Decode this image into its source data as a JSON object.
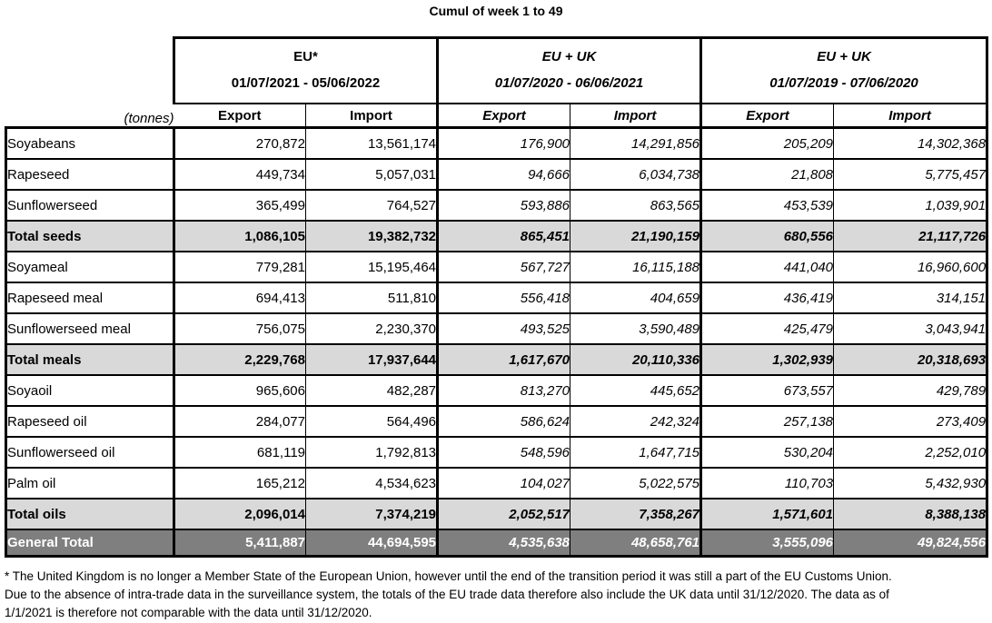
{
  "title": "Cumul of week 1 to 49",
  "table": {
    "unit_label": "(tonnes)",
    "groups": [
      {
        "name": "EU*",
        "period": "01/07/2021 - 05/06/2022"
      },
      {
        "name": "EU + UK",
        "period": "01/07/2020 - 06/06/2021"
      },
      {
        "name": "EU + UK",
        "period": "01/07/2019 - 07/06/2020"
      }
    ],
    "col_headers": [
      "Export",
      "Import"
    ],
    "rows": [
      {
        "label": "Soyabeans",
        "type": "data",
        "values": [
          "270,872",
          "13,561,174",
          "176,900",
          "14,291,856",
          "205,209",
          "14,302,368"
        ]
      },
      {
        "label": "Rapeseed",
        "type": "data",
        "values": [
          "449,734",
          "5,057,031",
          "94,666",
          "6,034,738",
          "21,808",
          "5,775,457"
        ]
      },
      {
        "label": "Sunflowerseed",
        "type": "data",
        "values": [
          "365,499",
          "764,527",
          "593,886",
          "863,565",
          "453,539",
          "1,039,901"
        ]
      },
      {
        "label": "Total seeds",
        "type": "total",
        "values": [
          "1,086,105",
          "19,382,732",
          "865,451",
          "21,190,159",
          "680,556",
          "21,117,726"
        ]
      },
      {
        "label": "Soyameal",
        "type": "data",
        "values": [
          "779,281",
          "15,195,464",
          "567,727",
          "16,115,188",
          "441,040",
          "16,960,600"
        ]
      },
      {
        "label": "Rapeseed meal",
        "type": "data",
        "values": [
          "694,413",
          "511,810",
          "556,418",
          "404,659",
          "436,419",
          "314,151"
        ]
      },
      {
        "label": "Sunflowerseed meal",
        "type": "data",
        "values": [
          "756,075",
          "2,230,370",
          "493,525",
          "3,590,489",
          "425,479",
          "3,043,941"
        ]
      },
      {
        "label": "Total meals",
        "type": "total",
        "values": [
          "2,229,768",
          "17,937,644",
          "1,617,670",
          "20,110,336",
          "1,302,939",
          "20,318,693"
        ]
      },
      {
        "label": "Soyaoil",
        "type": "data",
        "values": [
          "965,606",
          "482,287",
          "813,270",
          "445,652",
          "673,557",
          "429,789"
        ]
      },
      {
        "label": "Rapeseed oil",
        "type": "data",
        "values": [
          "284,077",
          "564,496",
          "586,624",
          "242,324",
          "257,138",
          "273,409"
        ]
      },
      {
        "label": "Sunflowerseed oil",
        "type": "data",
        "values": [
          "681,119",
          "1,792,813",
          "548,596",
          "1,647,715",
          "530,204",
          "2,252,010"
        ]
      },
      {
        "label": "Palm oil",
        "type": "data",
        "values": [
          "165,212",
          "4,534,623",
          "104,027",
          "5,022,575",
          "110,703",
          "5,432,930"
        ]
      },
      {
        "label": "Total oils",
        "type": "total",
        "values": [
          "2,096,014",
          "7,374,219",
          "2,052,517",
          "7,358,267",
          "1,571,601",
          "8,388,138"
        ]
      },
      {
        "label": "General Total",
        "type": "grand",
        "values": [
          "5,411,887",
          "44,694,595",
          "4,535,638",
          "48,658,761",
          "3,555,096",
          "49,824,556"
        ]
      }
    ]
  },
  "footnote": {
    "lines": [
      "* The United Kingdom is no longer a Member State of the European Union, however until the end of the transition period it was still a part of the EU Customs Union.",
      "Due to the absence of intra-trade data in the surveillance system, the totals of the EU trade data  therefore also include the UK data until 31/12/2020. The data as of",
      "1/1/2021 is therefore not comparable with the data until 31/12/2020."
    ]
  },
  "colors": {
    "total_row_bg": "#d9d9d9",
    "grand_total_bg": "#7f7f7f",
    "grand_total_text": "#ffffff",
    "border": "#000000"
  }
}
